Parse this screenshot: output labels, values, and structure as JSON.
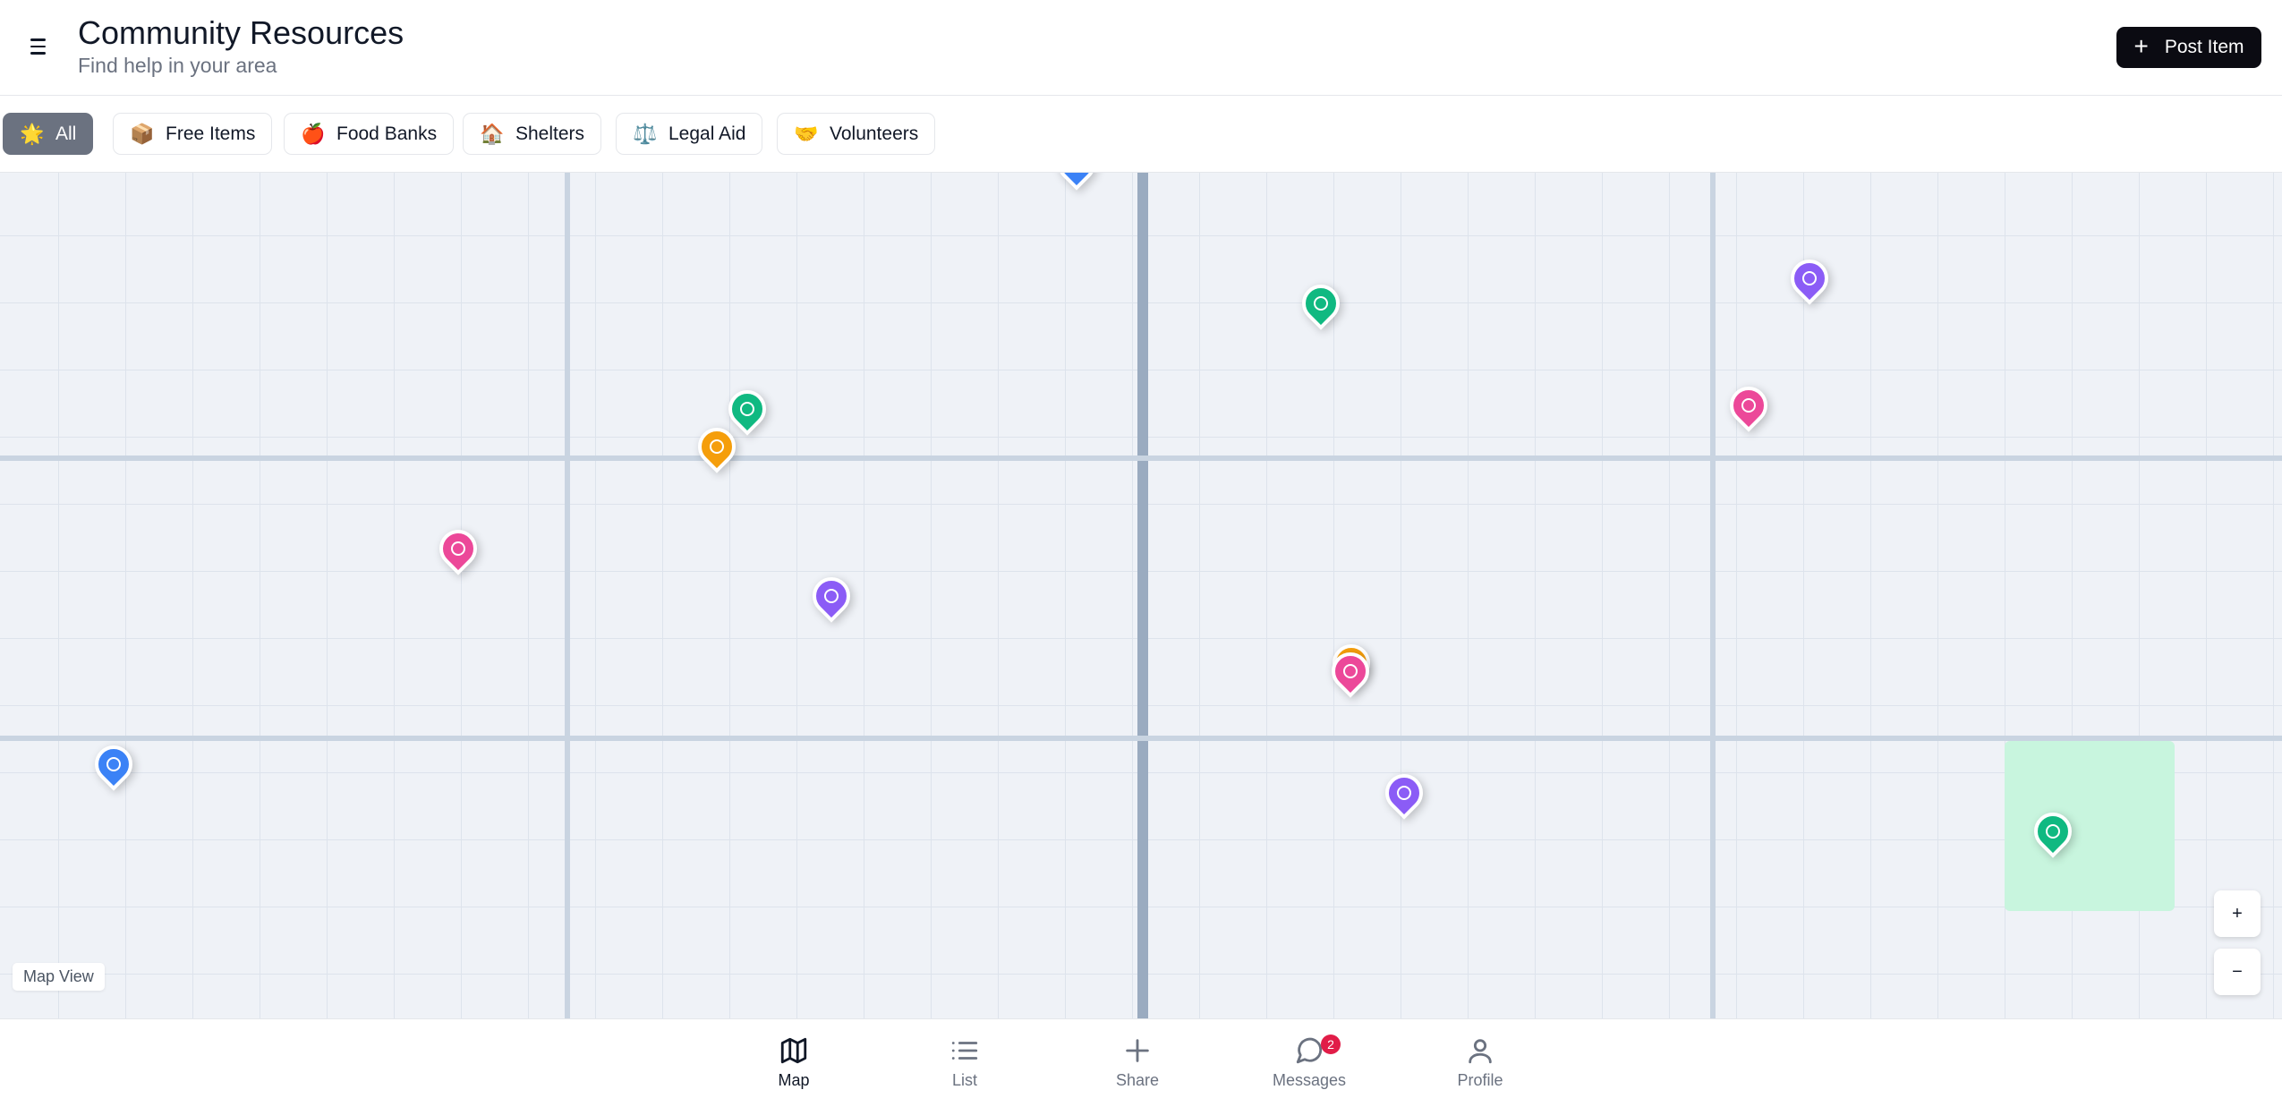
{
  "header": {
    "title": "Community Resources",
    "subtitle": "Find help in your area",
    "post_button_label": "Post Item",
    "menu_icon": "menu-icon"
  },
  "filters": [
    {
      "emoji": "🌟",
      "label": "All",
      "active": true
    },
    {
      "emoji": "📦",
      "label": "Free Items",
      "active": false
    },
    {
      "emoji": "🍎",
      "label": "Food Banks",
      "active": false
    },
    {
      "emoji": "🏠",
      "label": "Shelters",
      "active": false
    },
    {
      "emoji": "⚖️",
      "label": "Legal Aid",
      "active": false
    },
    {
      "emoji": "🤝",
      "label": "Volunteers",
      "active": false
    }
  ],
  "map": {
    "label": "Map View",
    "zoom_in": "+",
    "zoom_out": "−",
    "pin_colors": {
      "green": "#10b981",
      "purple": "#8b5cf6",
      "pink": "#ec4899",
      "orange": "#f59e0b",
      "blue": "#3b82f6"
    }
  },
  "bottom_nav": {
    "items": [
      {
        "label": "Map",
        "icon": "map-icon",
        "active": true
      },
      {
        "label": "List",
        "icon": "list-icon",
        "active": false
      },
      {
        "label": "Share",
        "icon": "plus-icon",
        "active": false
      },
      {
        "label": "Messages",
        "icon": "message-icon",
        "active": false,
        "badge": "2"
      },
      {
        "label": "Profile",
        "icon": "user-icon",
        "active": false
      }
    ]
  }
}
